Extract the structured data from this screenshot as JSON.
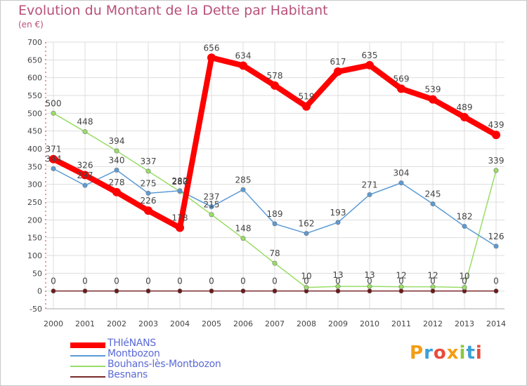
{
  "header": {
    "title": "Evolution du Montant de la Dette par Habitant",
    "unit": "(en €)"
  },
  "logo": {
    "text": "Proxiti",
    "letters": [
      {
        "ch": "P",
        "color": "#f39c12"
      },
      {
        "ch": "r",
        "color": "#3aa0d8"
      },
      {
        "ch": "o",
        "color": "#e74c3c"
      },
      {
        "ch": "x",
        "color": "#f39c12"
      },
      {
        "ch": "i",
        "color": "#8cc63f"
      },
      {
        "ch": "t",
        "color": "#3aa0d8"
      },
      {
        "ch": "i",
        "color": "#e74c3c"
      }
    ]
  },
  "chart_data": {
    "type": "line",
    "title": "Evolution du Montant de la Dette par Habitant",
    "ylabel": "(en €)",
    "xlabel": "",
    "x": [
      "2000",
      "2001",
      "2002",
      "2003",
      "2004",
      "2005",
      "2006",
      "2007",
      "2008",
      "2009",
      "2010",
      "2011",
      "2012",
      "2013",
      "2014"
    ],
    "ylim": [
      -50,
      700
    ],
    "yticks": [
      -50,
      0,
      50,
      100,
      150,
      200,
      250,
      300,
      350,
      400,
      450,
      500,
      550,
      600,
      650,
      700
    ],
    "grid": true,
    "legend_position": "bottom-left",
    "series": [
      {
        "name": "THIéNANS",
        "color": "#ff0000",
        "values": [
          371,
          326,
          278,
          226,
          178,
          656,
          634,
          578,
          519,
          617,
          635,
          569,
          539,
          489,
          439
        ]
      },
      {
        "name": "Montbozon",
        "color": "#5b9bd5",
        "values": [
          344,
          297,
          340,
          275,
          282,
          237,
          285,
          189,
          162,
          193,
          271,
          304,
          245,
          182,
          126
        ]
      },
      {
        "name": "Bouhans-lès-Montbozon",
        "color": "#99dd66",
        "values": [
          500,
          448,
          394,
          337,
          280,
          215,
          148,
          78,
          10,
          13,
          13,
          12,
          12,
          10,
          339
        ]
      },
      {
        "name": "Besnans",
        "color": "#7a2a2a",
        "values": [
          0,
          0,
          0,
          0,
          0,
          0,
          0,
          0,
          0,
          0,
          0,
          0,
          0,
          0,
          0
        ]
      }
    ],
    "data_labels": [
      [
        "371",
        "326",
        "278",
        "226",
        "178",
        "656",
        "634",
        "578",
        "519",
        "617",
        "635",
        "569",
        "539",
        "489",
        "439"
      ],
      [
        "344",
        "297",
        "340",
        "275",
        "282",
        "237",
        "285",
        "189",
        "162",
        "193",
        "271",
        "304",
        "245",
        "182",
        "126"
      ],
      [
        "500",
        "448",
        "394",
        "337",
        "280",
        "215",
        "148",
        "78",
        "10",
        "13",
        "13",
        "12",
        "12",
        "10",
        "339"
      ],
      [
        "0",
        "0",
        "0",
        "0",
        "0",
        "0",
        "0",
        "0",
        "0",
        "0",
        "0",
        "0",
        "0",
        "0",
        "0"
      ]
    ]
  }
}
